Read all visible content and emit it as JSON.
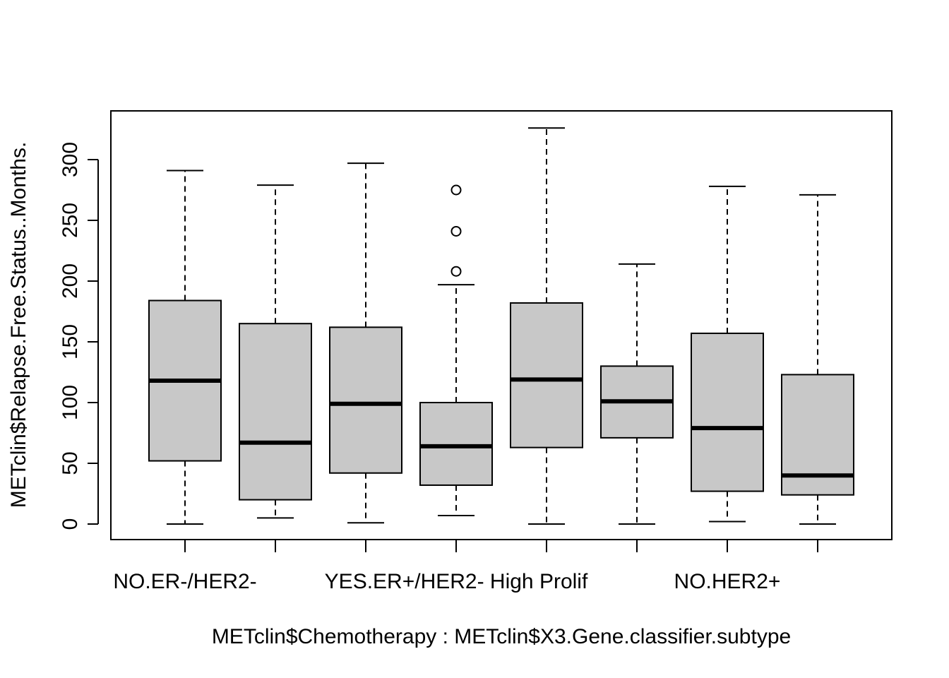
{
  "chart_data": {
    "type": "boxplot",
    "xlabel": "METclin$Chemotherapy : METclin$X3.Gene.classifier.subtype",
    "ylabel": "METclin$Relapse.Free.Status..Months.",
    "ylim": [
      -13,
      339
    ],
    "yticks": [
      0,
      50,
      100,
      150,
      200,
      250,
      300
    ],
    "grid": false,
    "categories_printed": [
      "NO.ER-/HER2-",
      "YES.ER+/HER2- High Prolif",
      "NO.HER2+"
    ],
    "boxes": [
      {
        "whisker_low": 0,
        "q1": 52,
        "median": 118,
        "q3": 184,
        "whisker_high": 291,
        "outliers": []
      },
      {
        "whisker_low": 5,
        "q1": 20,
        "median": 67,
        "q3": 165,
        "whisker_high": 279,
        "outliers": []
      },
      {
        "whisker_low": 1,
        "q1": 42,
        "median": 99,
        "q3": 162,
        "whisker_high": 297,
        "outliers": []
      },
      {
        "whisker_low": 7,
        "q1": 32,
        "median": 64,
        "q3": 100,
        "whisker_high": 197,
        "outliers": [
          208,
          241,
          275
        ]
      },
      {
        "whisker_low": 0,
        "q1": 63,
        "median": 119,
        "q3": 182,
        "whisker_high": 326,
        "outliers": []
      },
      {
        "whisker_low": 0,
        "q1": 71,
        "median": 101,
        "q3": 130,
        "whisker_high": 214,
        "outliers": []
      },
      {
        "whisker_low": 2,
        "q1": 27,
        "median": 79,
        "q3": 157,
        "whisker_high": 278,
        "outliers": []
      },
      {
        "whisker_low": 0,
        "q1": 24,
        "median": 40,
        "q3": 123,
        "whisker_high": 271,
        "outliers": []
      }
    ],
    "box_fill": "#c8c8c8"
  }
}
